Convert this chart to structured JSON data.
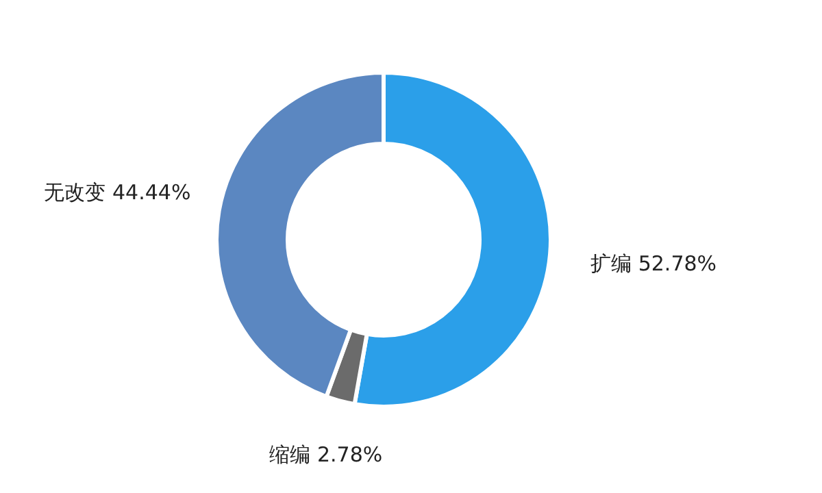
{
  "chart_data": {
    "type": "donut",
    "categories": [
      "扩编",
      "缩编",
      "无改变"
    ],
    "values": [
      52.78,
      2.78,
      44.44
    ],
    "value_labels": [
      "52.78%",
      "2.78%",
      "44.44%"
    ],
    "colors": [
      "#2b9fe9",
      "#6b6b6b",
      "#5b87c1"
    ]
  }
}
